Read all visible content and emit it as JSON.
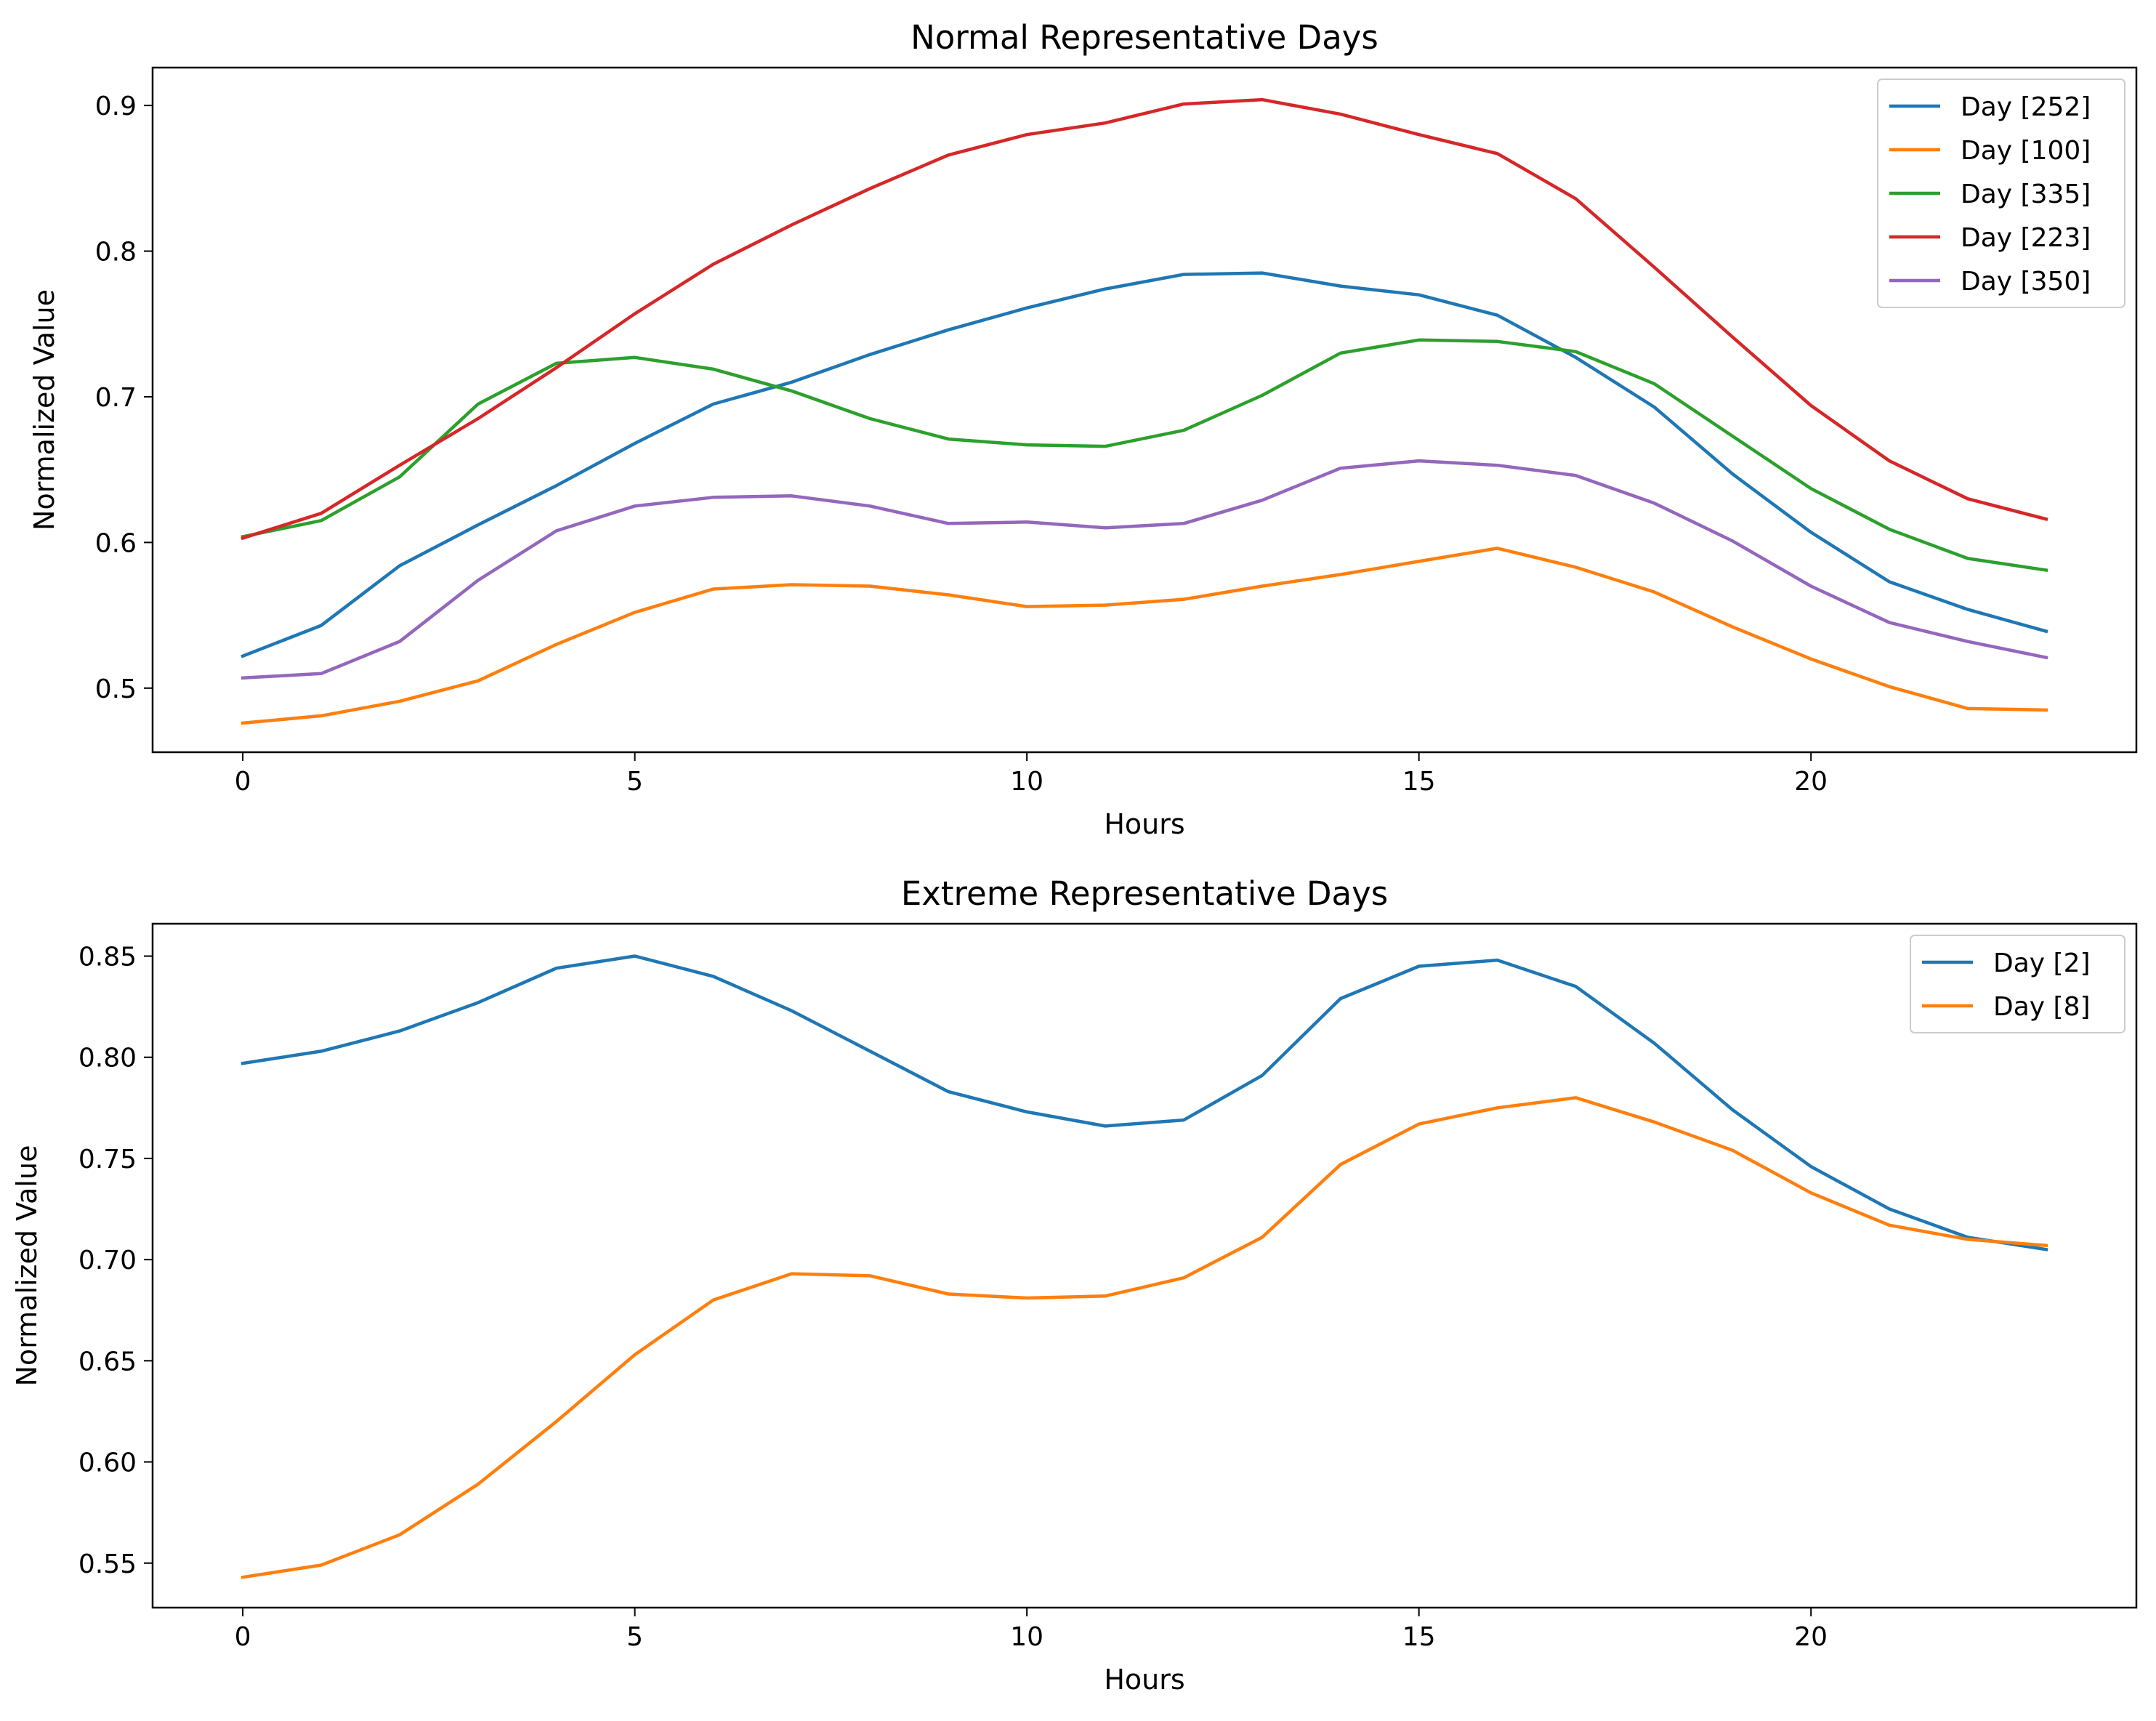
{
  "chart_data": [
    {
      "type": "line",
      "title": "Normal Representative Days",
      "xlabel": "Hours",
      "ylabel": "Normalized Value",
      "xlim": [
        -1.15,
        24.15
      ],
      "ylim": [
        0.456,
        0.926
      ],
      "xticks": [
        0,
        5,
        10,
        15,
        20
      ],
      "xtick_labels": [
        "0",
        "5",
        "10",
        "15",
        "20"
      ],
      "yticks": [
        0.5,
        0.6,
        0.7,
        0.8,
        0.9
      ],
      "ytick_labels": [
        "0.5",
        "0.6",
        "0.7",
        "0.8",
        "0.9"
      ],
      "grid": false,
      "legend": "top-right",
      "x": [
        0,
        1,
        2,
        3,
        4,
        5,
        6,
        7,
        8,
        9,
        10,
        11,
        12,
        13,
        14,
        15,
        16,
        17,
        18,
        19,
        20,
        21,
        22,
        23
      ],
      "series": [
        {
          "name": "Day [252]",
          "color": "#1f77b4",
          "values": [
            0.522,
            0.543,
            0.584,
            0.612,
            0.639,
            0.668,
            0.695,
            0.71,
            0.729,
            0.746,
            0.761,
            0.774,
            0.784,
            0.785,
            0.776,
            0.77,
            0.756,
            0.727,
            0.693,
            0.647,
            0.607,
            0.573,
            0.554,
            0.539
          ]
        },
        {
          "name": "Day [100]",
          "color": "#ff7f0e",
          "values": [
            0.476,
            0.481,
            0.491,
            0.505,
            0.53,
            0.552,
            0.568,
            0.571,
            0.57,
            0.564,
            0.556,
            0.557,
            0.561,
            0.57,
            0.578,
            0.587,
            0.596,
            0.583,
            0.566,
            0.542,
            0.52,
            0.501,
            0.486,
            0.485
          ]
        },
        {
          "name": "Day [335]",
          "color": "#2ca02c",
          "values": [
            0.604,
            0.615,
            0.645,
            0.695,
            0.723,
            0.727,
            0.719,
            0.704,
            0.685,
            0.671,
            0.667,
            0.666,
            0.677,
            0.701,
            0.73,
            0.739,
            0.738,
            0.731,
            0.709,
            0.673,
            0.637,
            0.609,
            0.589,
            0.581
          ]
        },
        {
          "name": "Day [223]",
          "color": "#d62728",
          "values": [
            0.603,
            0.62,
            0.653,
            0.685,
            0.72,
            0.757,
            0.791,
            0.818,
            0.843,
            0.866,
            0.88,
            0.888,
            0.901,
            0.904,
            0.894,
            0.88,
            0.867,
            0.836,
            0.789,
            0.741,
            0.694,
            0.656,
            0.63,
            0.616
          ]
        },
        {
          "name": "Day [350]",
          "color": "#9467bd",
          "values": [
            0.507,
            0.51,
            0.532,
            0.574,
            0.608,
            0.625,
            0.631,
            0.632,
            0.625,
            0.613,
            0.614,
            0.61,
            0.613,
            0.629,
            0.651,
            0.656,
            0.653,
            0.646,
            0.627,
            0.601,
            0.57,
            0.545,
            0.532,
            0.521
          ]
        }
      ]
    },
    {
      "type": "line",
      "title": "Extreme Representative Days",
      "xlabel": "Hours",
      "ylabel": "Normalized Value",
      "xlim": [
        -1.15,
        24.15
      ],
      "ylim": [
        0.528,
        0.866
      ],
      "xticks": [
        0,
        5,
        10,
        15,
        20
      ],
      "xtick_labels": [
        "0",
        "5",
        "10",
        "15",
        "20"
      ],
      "yticks": [
        0.55,
        0.6,
        0.65,
        0.7,
        0.75,
        0.8,
        0.85
      ],
      "ytick_labels": [
        "0.55",
        "0.60",
        "0.65",
        "0.70",
        "0.75",
        "0.80",
        "0.85"
      ],
      "grid": false,
      "legend": "top-right",
      "x": [
        0,
        1,
        2,
        3,
        4,
        5,
        6,
        7,
        8,
        9,
        10,
        11,
        12,
        13,
        14,
        15,
        16,
        17,
        18,
        19,
        20,
        21,
        22,
        23
      ],
      "series": [
        {
          "name": "Day [2]",
          "color": "#1f77b4",
          "values": [
            0.797,
            0.803,
            0.813,
            0.827,
            0.844,
            0.85,
            0.84,
            0.823,
            0.803,
            0.783,
            0.773,
            0.766,
            0.769,
            0.791,
            0.829,
            0.845,
            0.848,
            0.835,
            0.807,
            0.774,
            0.746,
            0.725,
            0.711,
            0.705
          ]
        },
        {
          "name": "Day [8]",
          "color": "#ff7f0e",
          "values": [
            0.543,
            0.549,
            0.564,
            0.589,
            0.62,
            0.653,
            0.68,
            0.693,
            0.692,
            0.683,
            0.681,
            0.682,
            0.691,
            0.711,
            0.747,
            0.767,
            0.775,
            0.78,
            0.768,
            0.754,
            0.733,
            0.717,
            0.71,
            0.707
          ]
        }
      ]
    }
  ]
}
